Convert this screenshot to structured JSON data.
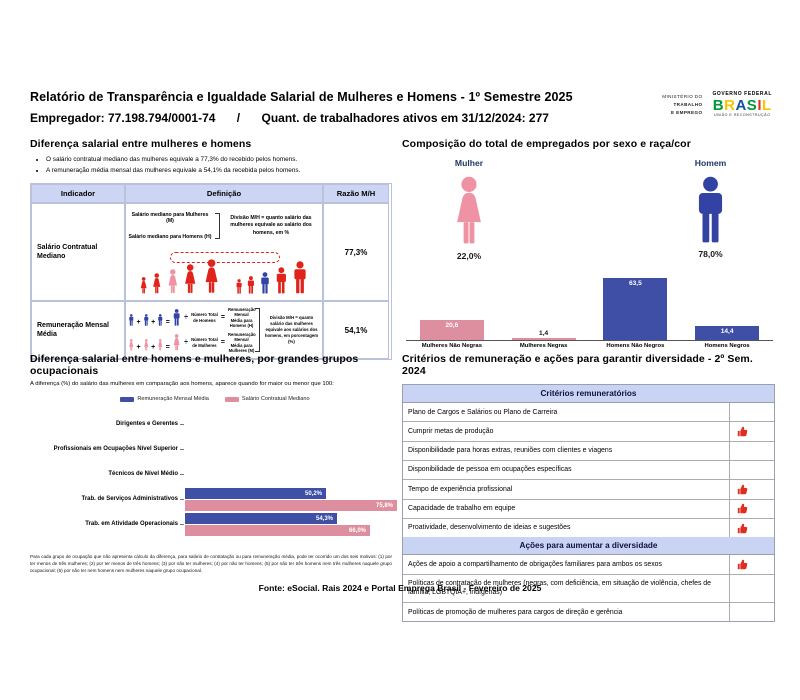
{
  "header": {
    "title": "Relatório de Transparência e Igualdade Salarial de Mulheres e Homens - 1º Semestre 2025",
    "employer": "Empregador: 77.198.794/0001-74",
    "separator": "/",
    "headcount": "Quant. de trabalhadores ativos em 31/12/2024: 277",
    "ministry_line1": "MINISTÉRIO DO",
    "ministry_line2": "TRABALHO",
    "ministry_line3": "E EMPREGO",
    "gov_top": "GOVERNO FEDERAL",
    "gov_brand": "BRASIL",
    "gov_bottom": "UNIÃO E RECONSTRUÇÃO"
  },
  "salary_gap": {
    "title": "Diferença salarial entre mulheres e homens",
    "bullets": [
      "O salário contratual mediano das mulheres equivale a 77,3% do recebido pelos homens.",
      "A remuneração média mensal das mulheres equivale a 54,1% da recebida pelos homens."
    ],
    "operators": {
      "plus": "+",
      "equals": "=",
      "divide": "÷"
    },
    "table": {
      "headers": [
        "Indicador",
        "Definição",
        "Razão M/H"
      ],
      "row1": {
        "indicator": "Salário Contratual Mediano",
        "def_line1": "Salário mediano para Mulheres (M)",
        "def_line2": "Salário mediano para Homens (H)",
        "def_note": "Divisão M/H = quanto salário das mulheres equivale ao salário dos homens, em %",
        "ratio": "77,3%"
      },
      "row2": {
        "indicator": "Remuneração Mensal Média",
        "men_divisor": "Número Total de Homens",
        "men_result": "Remuneração Mensal Média para Homens (H)",
        "women_divisor": "Número Total de Mulheres",
        "women_result": "Remuneração Mensal Média para Mulheres (M)",
        "def_note": "Divisão M/H = quanto salário das mulheres equivale aos salários dos homens, em porcentagem (%)",
        "ratio": "54,1%"
      }
    }
  },
  "composition": {
    "title": "Composição do total de empregados por sexo e raça/cor",
    "female_label": "Mulher",
    "female_pct": "22,0%",
    "male_label": "Homem",
    "male_pct": "78,0%"
  },
  "occupational": {
    "title": "Diferença salarial entre homens e mulheres, por grandes grupos ocupacionais",
    "subtitle": "A diferença (%) do salário das mulheres em comparação aos homens, aparece quando for maior ou menor que 100:",
    "footnote": "Para cada grupo de ocupação que não apresenta cálculo da diferença, para salário de contratação ou para remuneração média, pode ter ocorrido um dos seis motivos: (1) por ter menos de três mulheres; (2) por ter menos de três homens; (3) por não ter mulheres; (4) por não ter homens; (5) por não ter três homens nem três mulheres naquele grupo ocupacional; (6) por não ter nem homens nem mulheres naquele grupo ocupacional."
  },
  "criteria": {
    "title": "Critérios de remuneração e ações para garantir diversidade - 2º Sem. 2024",
    "section1_header": "Critérios remuneratórios",
    "section1_rows": [
      {
        "label": "Plano de Cargos e Salários ou Plano de Carreira",
        "checked": false
      },
      {
        "label": "Cumprir metas de produção",
        "checked": true
      },
      {
        "label": "Disponibilidade para horas extras, reuniões com clientes e viagens",
        "checked": false
      },
      {
        "label": "Disponibilidade de pessoa em ocupações específicas",
        "checked": false
      },
      {
        "label": "Tempo de experiência profissional",
        "checked": true
      },
      {
        "label": "Capacidade de trabalho em equipe",
        "checked": true
      },
      {
        "label": "Proatividade, desenvolvimento de ideias e sugestões",
        "checked": true
      }
    ],
    "section2_header": "Ações para aumentar a diversidade",
    "section2_rows": [
      {
        "label": "Ações de apoio a compartilhamento de obrigações familiares para ambos os sexos",
        "checked": true
      },
      {
        "label": "Políticas de contratação de mulheres (negras, com deficiência, em situação de violência, chefes de família, LGBTQIA+, indígenas)",
        "checked": false
      },
      {
        "label": "Políticas de promoção de mulheres para cargos de direção e gerência",
        "checked": false
      }
    ]
  },
  "footer": {
    "source": "Fonte: eSocial. Rais 2024 e Portal Emprega Brasil - Fevereiro de 2025"
  },
  "colors": {
    "red": "#e0241b",
    "pink": "#ef92a4",
    "bar_pink": "#dd8fa0",
    "blue": "#3343a4",
    "bar_blue": "#3e4fa5",
    "navy_label": "#1f3864",
    "header_lavender": "#ccd5f4",
    "thumb_red": "#e02d1f",
    "brasil_letters": [
      "#009739",
      "#f7c600",
      "#1350a0",
      "#009739",
      "#e03127",
      "#f7c600"
    ]
  },
  "chart_data": [
    {
      "type": "bar",
      "title": "Composição do total de empregados por sexo e raça/cor",
      "categories": [
        "Mulheres Não Negras",
        "Mulheres Negras",
        "Homens Não Negros",
        "Homens Negros"
      ],
      "values": [
        20.6,
        1.4,
        63.5,
        14.4
      ],
      "value_labels": [
        "20,6",
        "1,4",
        "63,5",
        "14,4"
      ],
      "bar_colors": [
        "#dd8fa0",
        "#dd8fa0",
        "#3e4fa5",
        "#3e4fa5"
      ],
      "unit": "%",
      "ylim": [
        0,
        66
      ],
      "grid": false,
      "extra": {
        "female_total_pct": 22.0,
        "male_total_pct": 78.0
      }
    },
    {
      "type": "bar",
      "orientation": "horizontal",
      "title": "Diferença salarial entre homens e mulheres, por grandes grupos ocupacionais",
      "categories": [
        "Dirigentes e Gerentes",
        "Profissionais em Ocupações Nível Superior",
        "Técnicos de Nível Médio",
        "Trab. de Serviços Administrativos",
        "Trab. em Atividade Operacionais"
      ],
      "series": [
        {
          "name": "Remuneração Mensal Média",
          "color": "#3e4fa5",
          "values": [
            null,
            null,
            null,
            50.2,
            54.3
          ],
          "labels": [
            "",
            "",
            "",
            "50,2%",
            "54,3%"
          ]
        },
        {
          "name": "Salário Contratual Mediano",
          "color": "#dd8fa0",
          "values": [
            null,
            null,
            null,
            75.8,
            66.0
          ],
          "labels": [
            "",
            "",
            "",
            "75,8%",
            "66,0%"
          ]
        }
      ],
      "xlim": [
        0,
        100
      ],
      "legend_position": "top",
      "grid": false
    }
  ]
}
